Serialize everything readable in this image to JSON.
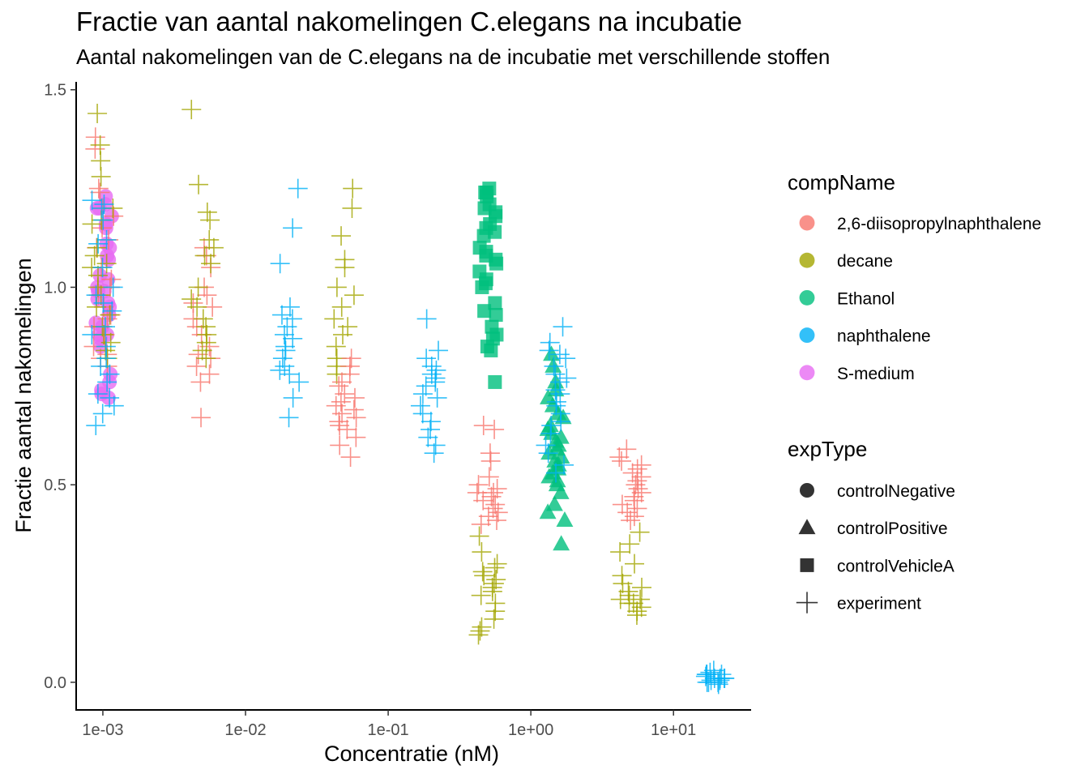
{
  "chart_data": {
    "type": "scatter",
    "title": "Fractie van aantal nakomelingen C.elegans na incubatie",
    "subtitle": "Aantal nakomelingen van de C.elegans na de incubatie met verschillende stoffen",
    "xlabel": "Concentratie (nM)",
    "ylabel": "Fractie aantal nakomelingen",
    "x_scale": "log10",
    "xlim": [
      0.00065,
      35
    ],
    "ylim": [
      -0.07,
      1.52
    ],
    "x_ticks": [
      0.001,
      0.01,
      0.1,
      1,
      10
    ],
    "x_tick_labels": [
      "1e-03",
      "1e-02",
      "1e-01",
      "1e+00",
      "1e+01"
    ],
    "y_ticks": [
      0,
      0.5,
      1.0,
      1.5
    ],
    "y_tick_labels": [
      "0.0",
      "0.5",
      "1.0",
      "1.5"
    ],
    "grid": false,
    "legend_position": "right",
    "legend": {
      "color_title": "compName",
      "color_entries": [
        {
          "label": "2,6-diisopropylnaphthalene",
          "color": "#F8766D"
        },
        {
          "label": "decane",
          "color": "#A3A500"
        },
        {
          "label": "Ethanol",
          "color": "#00BF7D"
        },
        {
          "label": "naphthalene",
          "color": "#00B0F6"
        },
        {
          "label": "S-medium",
          "color": "#E76BF3"
        }
      ],
      "shape_title": "expType",
      "shape_entries": [
        {
          "label": "controlNegative",
          "shape": "circle"
        },
        {
          "label": "controlPositive",
          "shape": "triangle"
        },
        {
          "label": "controlVehicleA",
          "shape": "square"
        },
        {
          "label": "experiment",
          "shape": "plus"
        }
      ]
    },
    "series": [
      {
        "compName": "S-medium",
        "expType": "controlNegative",
        "x": 0.001,
        "values": [
          1.23,
          1.2,
          1.21,
          1.18,
          1.15,
          1.16,
          1.2,
          1.1,
          1.11,
          1.07,
          1.08,
          1.03,
          1.02,
          1.0,
          0.99,
          0.99,
          0.97,
          0.96,
          0.95,
          0.93,
          0.91,
          0.9,
          0.88,
          0.87,
          0.88,
          0.85,
          0.78,
          0.76,
          0.74,
          0.73,
          0.72
        ]
      },
      {
        "compName": "2,6-diisopropylnaphthalene",
        "expType": "experiment",
        "x": 0.001,
        "values": [
          1.38,
          1.35,
          1.25,
          1.24,
          1.2,
          1.18,
          1.15,
          1.12,
          1.1,
          1.05,
          1.02,
          1.0,
          0.98,
          0.95,
          0.93,
          0.92,
          0.9,
          0.88,
          0.85,
          0.83,
          0.82,
          0.8
        ]
      },
      {
        "compName": "decane",
        "expType": "experiment",
        "x": 0.001,
        "values": [
          1.44,
          1.36,
          1.32,
          1.28,
          1.2,
          1.17,
          1.16,
          1.1,
          1.08,
          1.06,
          1.05,
          1.03,
          1.0,
          0.98,
          0.95,
          0.93,
          0.9,
          0.88,
          0.86,
          0.84,
          0.82
        ]
      },
      {
        "compName": "naphthalene",
        "expType": "experiment",
        "x": 0.001,
        "values": [
          1.22,
          1.21,
          1.2,
          1.17,
          1.12,
          1.11,
          1.05,
          1.0,
          0.98,
          0.96,
          0.94,
          0.9,
          0.88,
          0.85,
          0.82,
          0.8,
          0.78,
          0.76,
          0.73,
          0.72,
          0.7,
          0.68,
          0.65
        ]
      },
      {
        "compName": "2,6-diisopropylnaphthalene",
        "expType": "experiment",
        "x": 0.005,
        "values": [
          1.1,
          1.08,
          1.05,
          1.0,
          0.98,
          0.96,
          0.95,
          0.92,
          0.9,
          0.88,
          0.85,
          0.83,
          0.82,
          0.8,
          0.78,
          0.76,
          0.67
        ]
      },
      {
        "compName": "decane",
        "expType": "experiment",
        "x": 0.005,
        "values": [
          1.45,
          1.26,
          1.19,
          1.17,
          1.12,
          1.1,
          1.08,
          1.06,
          1.0,
          0.97,
          0.95,
          0.92,
          0.9,
          0.88,
          0.86,
          0.84,
          0.82
        ]
      },
      {
        "compName": "naphthalene",
        "expType": "experiment",
        "x": 0.02,
        "values": [
          1.25,
          1.15,
          1.06,
          0.95,
          0.93,
          0.92,
          0.9,
          0.88,
          0.87,
          0.85,
          0.84,
          0.82,
          0.8,
          0.79,
          0.78,
          0.76,
          0.72,
          0.67
        ]
      },
      {
        "compName": "decane",
        "expType": "experiment",
        "x": 0.05,
        "values": [
          1.25,
          1.2,
          1.13,
          1.07,
          1.05,
          1.0,
          0.98,
          0.95,
          0.92,
          0.9,
          0.88,
          0.85,
          0.82,
          0.8,
          0.78
        ]
      },
      {
        "compName": "2,6-diisopropylnaphthalene",
        "expType": "experiment",
        "x": 0.05,
        "values": [
          0.82,
          0.8,
          0.78,
          0.76,
          0.75,
          0.73,
          0.72,
          0.71,
          0.7,
          0.69,
          0.68,
          0.67,
          0.66,
          0.65,
          0.64,
          0.62,
          0.6,
          0.57
        ]
      },
      {
        "compName": "naphthalene",
        "expType": "experiment",
        "x": 0.2,
        "values": [
          0.92,
          0.84,
          0.82,
          0.8,
          0.79,
          0.78,
          0.77,
          0.76,
          0.75,
          0.73,
          0.72,
          0.7,
          0.68,
          0.66,
          0.64,
          0.62,
          0.6,
          0.58
        ]
      },
      {
        "compName": "Ethanol",
        "expType": "controlVehicleA",
        "x": 0.5,
        "values": [
          1.25,
          1.24,
          1.24,
          1.23,
          1.21,
          1.2,
          1.19,
          1.18,
          1.16,
          1.15,
          1.14,
          1.13,
          1.1,
          1.09,
          1.08,
          1.07,
          1.06,
          1.04,
          1.02,
          1.01,
          1.0,
          0.96,
          0.94,
          0.93,
          0.9,
          0.88,
          0.87,
          0.85,
          0.84,
          0.76
        ]
      },
      {
        "compName": "2,6-diisopropylnaphthalene",
        "expType": "experiment",
        "x": 0.5,
        "values": [
          0.65,
          0.64,
          0.58,
          0.56,
          0.52,
          0.5,
          0.49,
          0.48,
          0.48,
          0.47,
          0.46,
          0.45,
          0.44,
          0.43,
          0.42,
          0.41,
          0.4
        ]
      },
      {
        "compName": "decane",
        "expType": "experiment",
        "x": 0.5,
        "values": [
          0.37,
          0.33,
          0.3,
          0.29,
          0.28,
          0.27,
          0.26,
          0.25,
          0.24,
          0.23,
          0.22,
          0.2,
          0.18,
          0.16,
          0.14,
          0.13,
          0.12
        ]
      },
      {
        "compName": "Ethanol",
        "expType": "controlPositive",
        "x": 1.5,
        "values": [
          0.83,
          0.8,
          0.76,
          0.74,
          0.72,
          0.7,
          0.68,
          0.67,
          0.65,
          0.64,
          0.63,
          0.62,
          0.61,
          0.6,
          0.59,
          0.58,
          0.57,
          0.56,
          0.55,
          0.54,
          0.53,
          0.52,
          0.51,
          0.5,
          0.48,
          0.45,
          0.43,
          0.41,
          0.35
        ]
      },
      {
        "compName": "naphthalene",
        "expType": "experiment",
        "x": 1.5,
        "values": [
          0.9,
          0.86,
          0.84,
          0.83,
          0.82,
          0.8,
          0.78,
          0.77,
          0.76,
          0.74,
          0.73,
          0.71,
          0.7,
          0.68,
          0.66,
          0.65,
          0.63,
          0.6,
          0.58,
          0.55,
          0.53
        ]
      },
      {
        "compName": "2,6-diisopropylnaphthalene",
        "expType": "experiment",
        "x": 5,
        "values": [
          0.59,
          0.57,
          0.56,
          0.55,
          0.54,
          0.53,
          0.52,
          0.51,
          0.5,
          0.49,
          0.48,
          0.47,
          0.46,
          0.45,
          0.44,
          0.43,
          0.42,
          0.41
        ]
      },
      {
        "compName": "decane",
        "expType": "experiment",
        "x": 5,
        "values": [
          0.38,
          0.35,
          0.33,
          0.3,
          0.27,
          0.25,
          0.24,
          0.23,
          0.22,
          0.21,
          0.21,
          0.2,
          0.2,
          0.19,
          0.18,
          0.17
        ]
      },
      {
        "compName": "naphthalene",
        "expType": "experiment",
        "x": 20,
        "values": [
          0.03,
          0.025,
          0.02,
          0.02,
          0.015,
          0.01,
          0.01,
          0.01,
          0.005,
          0.005,
          0.0,
          0.0,
          -0.005,
          0.0,
          0.01,
          0.02
        ]
      }
    ]
  }
}
